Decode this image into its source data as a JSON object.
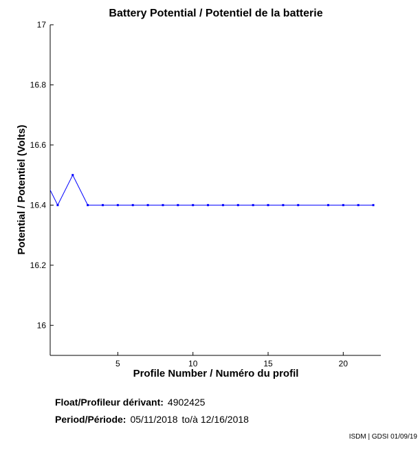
{
  "chart_data": {
    "type": "line",
    "title": "Battery Potential / Potentiel de la batterie",
    "xlabel": "Profile Number / Numéro du profil",
    "ylabel": "Potential / Potentiel (Volts)",
    "xlim": [
      0.5,
      22.5
    ],
    "ylim": [
      15.9,
      17
    ],
    "xticks": [
      5,
      10,
      15,
      20
    ],
    "yticks": [
      16,
      16.2,
      16.4,
      16.6,
      16.8,
      17
    ],
    "series": [
      {
        "x": [
          0,
          1,
          2,
          3,
          4,
          5,
          6,
          7,
          8,
          9,
          10,
          11,
          12,
          13,
          14,
          15,
          16,
          17,
          19,
          20,
          21,
          22
        ],
        "y": [
          16.5,
          16.4,
          16.5,
          16.4,
          16.4,
          16.4,
          16.4,
          16.4,
          16.4,
          16.4,
          16.4,
          16.4,
          16.4,
          16.4,
          16.4,
          16.4,
          16.4,
          16.4,
          16.4,
          16.4,
          16.4,
          16.4
        ]
      }
    ],
    "line_color": "#0000ff",
    "grid": false
  },
  "footer": {
    "float_label": "Float/Profileur dérivant:",
    "float_value": "4902425",
    "period_label": "Period/Période:",
    "period_start": "05/11/2018",
    "period_to": "to/à",
    "period_end": "12/16/2018"
  },
  "credit": "ISDM | GDSI 01/09/19"
}
